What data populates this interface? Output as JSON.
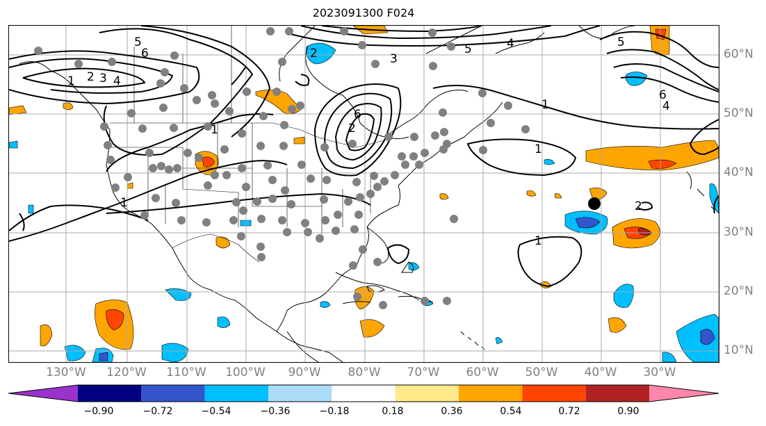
{
  "title": "2023091300 F024",
  "lat_labels": [
    "60°N",
    "50°N",
    "40°N",
    "30°N",
    "20°N",
    "10°N"
  ],
  "lon_labels": [
    "130°W",
    "120°W",
    "110°W",
    "100°W",
    "90°W",
    "80°W",
    "70°W",
    "60°W",
    "50°W",
    "40°W",
    "30°W"
  ],
  "contour_labels": [
    "1",
    "2",
    "3",
    "4",
    "5",
    "6"
  ],
  "colorbar": {
    "ticks": [
      "−0.90",
      "−0.72",
      "−0.54",
      "−0.36",
      "−0.18",
      "0.18",
      "0.36",
      "0.54",
      "0.72",
      "0.90"
    ],
    "colors": [
      "#9933cc",
      "#000080",
      "#3355cc",
      "#00bfff",
      "#aadcf8",
      "#ffffff",
      "#ffe98a",
      "#ffa500",
      "#ff4500",
      "#b22222",
      "#ff88aa"
    ]
  },
  "colors": {
    "axis_labels": "#808080",
    "grid": "#aaaaaa",
    "contour": "#000000",
    "station": "#808080",
    "marker": "#000000"
  }
}
